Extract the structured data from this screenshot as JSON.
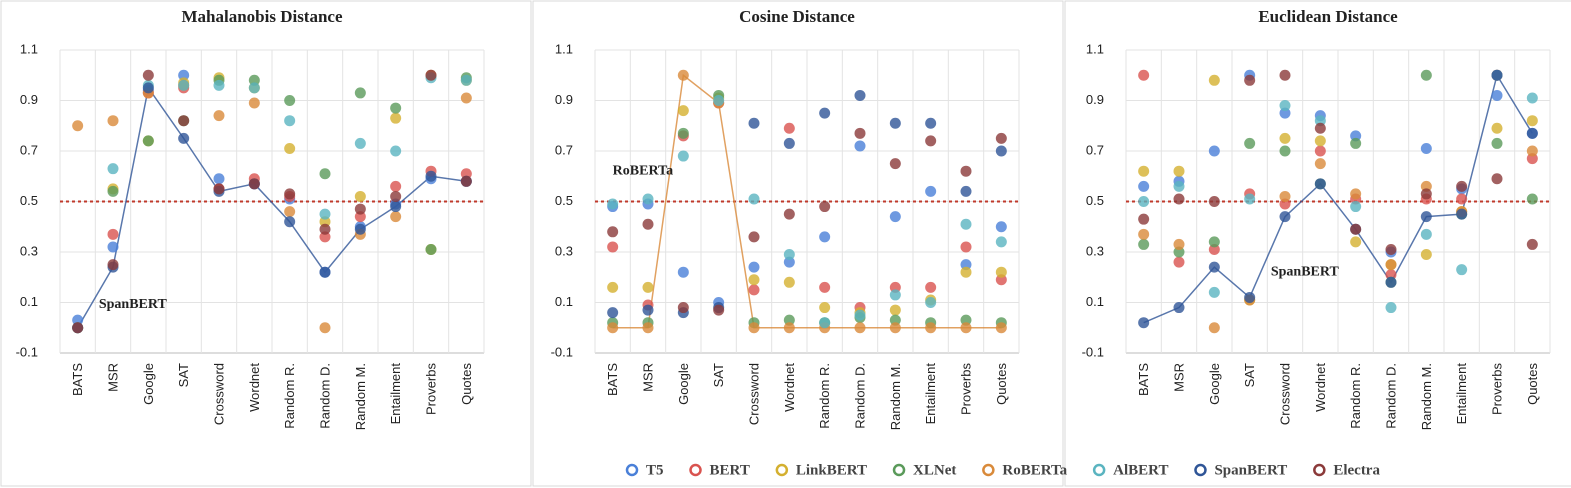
{
  "chart_data": [
    {
      "type": "scatter",
      "title": "Mahalanobis Distance",
      "annotation": "SpanBERT",
      "categories": [
        "BATS",
        "MSR",
        "Google",
        "SAT",
        "Crossword",
        "Wordnet",
        "Random R.",
        "Random D.",
        "Random M.",
        "Entailment",
        "Proverbs",
        "Quotes"
      ],
      "ylim": [
        -0.1,
        1.1
      ],
      "yticks": [
        -0.1,
        0.1,
        0.3,
        0.5,
        0.7,
        0.9,
        1.1
      ],
      "grid": true,
      "hline": 0.5,
      "series": [
        {
          "name": "T5",
          "color": "#4a80d8",
          "values": [
            0.03,
            0.32,
            0.94,
            1.0,
            0.59,
            0.57,
            0.51,
            0.22,
            0.4,
            0.49,
            0.59,
            0.58
          ]
        },
        {
          "name": "BERT",
          "color": "#d9534f",
          "values": [
            0.0,
            0.37,
            0.93,
            0.95,
            0.55,
            0.59,
            0.52,
            0.36,
            0.44,
            0.56,
            0.62,
            0.61
          ]
        },
        {
          "name": "LinkBERT",
          "color": "#d4b030",
          "values": [
            0.0,
            0.55,
            0.74,
            0.97,
            0.99,
            0.95,
            0.71,
            0.42,
            0.52,
            0.83,
            0.31,
            0.98
          ]
        },
        {
          "name": "XLNet",
          "color": "#5a9a5a",
          "values": [
            0.0,
            0.54,
            0.74,
            0.82,
            0.98,
            0.98,
            0.9,
            0.61,
            0.93,
            0.87,
            0.31,
            0.99
          ]
        },
        {
          "name": "RoBERTa",
          "color": "#d98a3a",
          "values": [
            0.8,
            0.82,
            0.93,
            0.96,
            0.84,
            0.89,
            0.46,
            0.0,
            0.37,
            0.44,
            1.0,
            0.91
          ]
        },
        {
          "name": "AlBERT",
          "color": "#5ab4c0",
          "values": [
            0.0,
            0.63,
            0.96,
            0.96,
            0.96,
            0.95,
            0.82,
            0.45,
            0.73,
            0.7,
            0.99,
            0.98
          ]
        },
        {
          "name": "SpanBERT",
          "color": "#2f5597",
          "values": [
            0.0,
            0.24,
            0.95,
            0.75,
            0.54,
            0.57,
            0.42,
            0.22,
            0.39,
            0.48,
            0.6,
            0.58
          ]
        },
        {
          "name": "Electra",
          "color": "#8b3a3a",
          "values": [
            0.0,
            0.25,
            1.0,
            0.82,
            0.55,
            0.57,
            0.53,
            0.39,
            0.47,
            0.52,
            1.0,
            0.58
          ]
        }
      ]
    },
    {
      "type": "scatter",
      "title": "Cosine Distance",
      "annotation": "RoBERTa",
      "categories": [
        "BATS",
        "MSR",
        "Google",
        "SAT",
        "Crossword",
        "Wordnet",
        "Random R.",
        "Random D.",
        "Random M.",
        "Entailment",
        "Proverbs",
        "Quotes"
      ],
      "ylim": [
        -0.1,
        1.1
      ],
      "yticks": [
        -0.1,
        0.1,
        0.3,
        0.5,
        0.7,
        0.9,
        1.1
      ],
      "grid": true,
      "hline": 0.5,
      "series": [
        {
          "name": "T5",
          "color": "#4a80d8",
          "values": [
            0.48,
            0.49,
            0.22,
            0.1,
            0.24,
            0.26,
            0.36,
            0.72,
            0.44,
            0.54,
            0.25,
            0.4
          ]
        },
        {
          "name": "BERT",
          "color": "#d9534f",
          "values": [
            0.32,
            0.09,
            0.76,
            0.89,
            0.15,
            0.79,
            0.16,
            0.08,
            0.16,
            0.16,
            0.32,
            0.19
          ]
        },
        {
          "name": "LinkBERT",
          "color": "#d4b030",
          "values": [
            0.16,
            0.16,
            0.86,
            0.91,
            0.19,
            0.18,
            0.08,
            0.06,
            0.07,
            0.11,
            0.22,
            0.22
          ]
        },
        {
          "name": "XLNet",
          "color": "#5a9a5a",
          "values": [
            0.02,
            0.02,
            0.77,
            0.92,
            0.02,
            0.03,
            0.02,
            0.04,
            0.03,
            0.02,
            0.03,
            0.02
          ]
        },
        {
          "name": "RoBERTa",
          "color": "#d98a3a",
          "values": [
            0.0,
            0.0,
            1.0,
            0.89,
            0.0,
            0.0,
            0.0,
            0.0,
            0.0,
            0.0,
            0.0,
            0.0
          ]
        },
        {
          "name": "AlBERT",
          "color": "#5ab4c0",
          "values": [
            0.49,
            0.51,
            0.68,
            0.9,
            0.51,
            0.29,
            0.02,
            0.05,
            0.13,
            0.1,
            0.41,
            0.34
          ]
        },
        {
          "name": "SpanBERT",
          "color": "#2f5597",
          "values": [
            0.06,
            0.07,
            0.06,
            0.08,
            0.81,
            0.73,
            0.85,
            0.92,
            0.81,
            0.81,
            0.54,
            0.7
          ]
        },
        {
          "name": "Electra",
          "color": "#8b3a3a",
          "values": [
            0.38,
            0.41,
            0.08,
            0.07,
            0.36,
            0.45,
            0.48,
            0.77,
            0.65,
            0.74,
            0.62,
            0.75
          ]
        }
      ]
    },
    {
      "type": "scatter",
      "title": "Euclidean Distance",
      "annotation": "SpanBERT",
      "categories": [
        "BATS",
        "MSR",
        "Google",
        "SAT",
        "Crossword",
        "Wordnet",
        "Random R.",
        "Random D.",
        "Random M.",
        "Entailment",
        "Proverbs",
        "Quotes"
      ],
      "ylim": [
        -0.1,
        1.1
      ],
      "yticks": [
        -0.1,
        0.1,
        0.3,
        0.5,
        0.7,
        0.9,
        1.1
      ],
      "grid": true,
      "hline": 0.5,
      "series": [
        {
          "name": "T5",
          "color": "#4a80d8",
          "values": [
            0.56,
            0.58,
            0.7,
            1.0,
            0.85,
            0.84,
            0.76,
            0.3,
            0.71,
            0.55,
            0.92,
            0.77
          ]
        },
        {
          "name": "BERT",
          "color": "#d9534f",
          "values": [
            1.0,
            0.26,
            0.31,
            0.53,
            0.49,
            0.7,
            0.51,
            0.21,
            0.51,
            0.51,
            1.0,
            0.67
          ]
        },
        {
          "name": "LinkBERT",
          "color": "#d4b030",
          "values": [
            0.62,
            0.62,
            0.98,
            0.11,
            0.75,
            0.74,
            0.34,
            0.25,
            0.29,
            0.46,
            0.79,
            0.82
          ]
        },
        {
          "name": "XLNet",
          "color": "#5a9a5a",
          "values": [
            0.33,
            0.3,
            0.34,
            0.73,
            0.7,
            0.57,
            0.73,
            0.18,
            1.0,
            0.45,
            0.73,
            0.51
          ]
        },
        {
          "name": "RoBERTa",
          "color": "#d98a3a",
          "values": [
            0.37,
            0.33,
            0.0,
            0.11,
            0.52,
            0.65,
            0.53,
            0.25,
            0.56,
            0.46,
            1.0,
            0.7
          ]
        },
        {
          "name": "AlBERT",
          "color": "#5ab4c0",
          "values": [
            0.5,
            0.56,
            0.14,
            0.51,
            0.88,
            0.82,
            0.48,
            0.08,
            0.37,
            0.23,
            1.0,
            0.91
          ]
        },
        {
          "name": "SpanBERT",
          "color": "#2f5597",
          "values": [
            0.02,
            0.08,
            0.24,
            0.12,
            0.44,
            0.57,
            0.39,
            0.18,
            0.44,
            0.45,
            1.0,
            0.77
          ]
        },
        {
          "name": "Electra",
          "color": "#8b3a3a",
          "values": [
            0.43,
            0.51,
            0.5,
            0.98,
            1.0,
            0.79,
            0.39,
            0.31,
            0.53,
            0.56,
            0.59,
            0.33
          ]
        }
      ]
    }
  ]
}
